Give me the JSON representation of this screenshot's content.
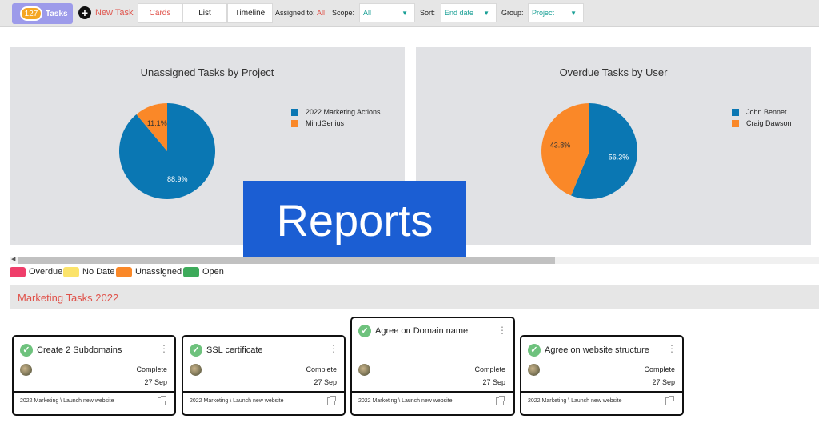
{
  "toolbar": {
    "tasks_count": "127",
    "tasks_label": "Tasks",
    "new_task_label": "New Task",
    "view_tabs": [
      "Cards",
      "List",
      "Timeline"
    ],
    "assigned_to_label": "Assigned to:",
    "assigned_to_value": "All",
    "scope_label": "Scope:",
    "scope_value": "All",
    "sort_label": "Sort:",
    "sort_value": "End date",
    "group_label": "Group:",
    "group_value": "Project"
  },
  "charts": {
    "left_title": "Unassigned Tasks by Project",
    "right_title": "Overdue Tasks by User",
    "left_slice_labels": [
      "88.9%",
      "11.1%"
    ],
    "right_slice_labels": [
      "56.3%",
      "43.8%"
    ]
  },
  "chart_data": [
    {
      "type": "pie",
      "title": "Unassigned Tasks by Project",
      "labels": [
        "2022 Marketing Actions",
        "MindGenius"
      ],
      "values": [
        88.9,
        11.1
      ],
      "colors": [
        "#0a77b3",
        "#fa8828"
      ],
      "legend": "right"
    },
    {
      "type": "pie",
      "title": "Overdue Tasks by User",
      "labels": [
        "John Bennet",
        "Craig Dawson"
      ],
      "values": [
        56.3,
        43.8
      ],
      "colors": [
        "#0a77b3",
        "#fa8828"
      ],
      "legend": "right"
    }
  ],
  "banner": {
    "text": "Reports"
  },
  "status_legend": [
    {
      "label": "Overdue",
      "color": "#ef3e6a"
    },
    {
      "label": "No Date",
      "color": "#fbe36a"
    },
    {
      "label": "Unassigned",
      "color": "#fa8828"
    },
    {
      "label": "Open",
      "color": "#3daa5a"
    }
  ],
  "group": {
    "title": "Marketing Tasks 2022"
  },
  "cards": [
    {
      "title": "Create 2 Subdomains",
      "status": "Complete",
      "date": "27 Sep",
      "path": "2022 Marketing \\ Launch new website"
    },
    {
      "title": "SSL certificate",
      "status": "Complete",
      "date": "27 Sep",
      "path": "2022 Marketing \\ Launch new website"
    },
    {
      "title": "Agree on Domain name",
      "status": "Complete",
      "date": "27 Sep",
      "path": "2022 Marketing \\ Launch new website"
    },
    {
      "title": "Agree on website structure",
      "status": "Complete",
      "date": "27 Sep",
      "path": "2022 Marketing \\ Launch new website"
    }
  ],
  "icons": {
    "check": "check-icon",
    "menu": "kebab-menu-icon",
    "link": "external-link-icon",
    "new_task": "plus-icon"
  }
}
